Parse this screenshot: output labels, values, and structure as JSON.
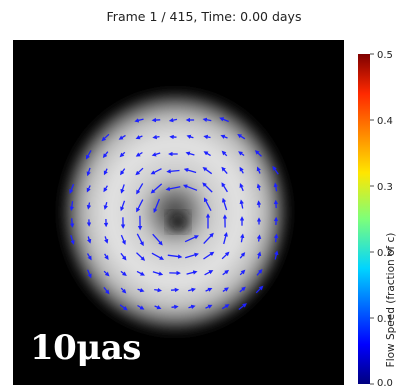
{
  "header": {
    "title": "Frame 1 / 415, Time: 0.00 days"
  },
  "image": {
    "scale_label": "10μas",
    "background": "#000000",
    "arrow_color": "#1e22ff"
  },
  "colorbar": {
    "label": "Flow Speed (fraction of c)",
    "ticks": [
      "0.0",
      "0.1",
      "0.2",
      "0.3",
      "0.4",
      "0.5"
    ],
    "range": [
      0.0,
      0.5
    ],
    "colormap": "jet"
  },
  "chart_data": {
    "type": "heatmap",
    "title": "Frame 1 / 415, Time: 0.00 days",
    "frame": 1,
    "total_frames": 415,
    "time_days": 0.0,
    "overlay": "velocity-field-arrows",
    "colorbar": {
      "label": "Flow Speed (fraction of c)",
      "vmin": 0.0,
      "vmax": 0.5,
      "ticks": [
        0.0,
        0.1,
        0.2,
        0.3,
        0.4,
        0.5
      ]
    }
  }
}
